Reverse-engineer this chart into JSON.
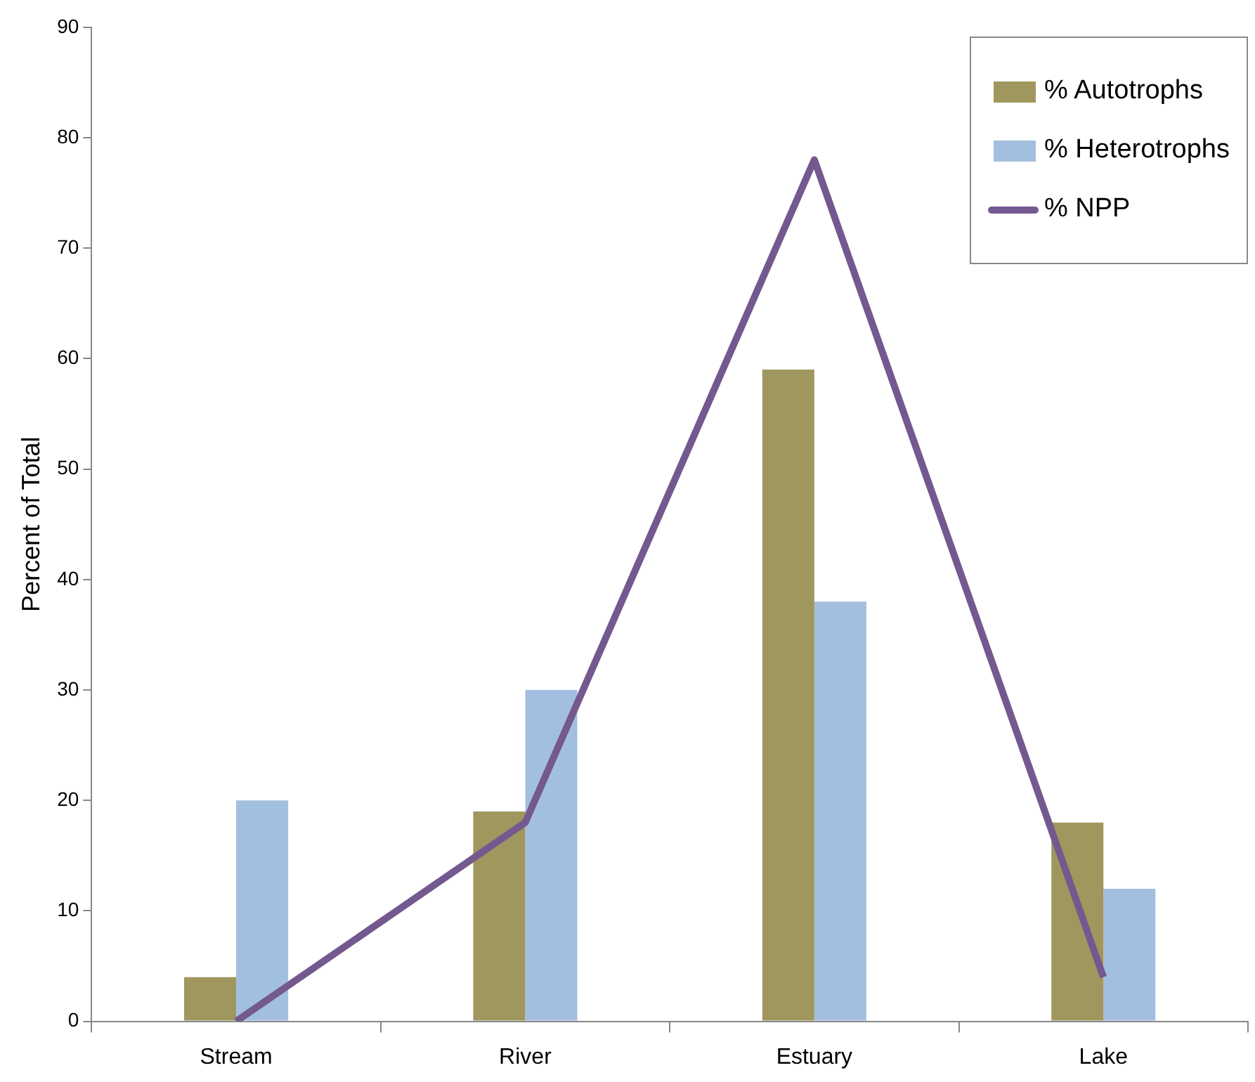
{
  "chart_data": {
    "type": "bar",
    "ylabel": "Percent of Total",
    "categories": [
      "Stream",
      "River",
      "Estuary",
      "Lake"
    ],
    "series": [
      {
        "name": "% Autotrophs",
        "color": "#a0975e",
        "values": [
          4,
          19,
          59,
          18
        ]
      },
      {
        "name": "% Heterotrophs",
        "color": "#a3bfe0",
        "values": [
          20,
          30,
          38,
          12
        ]
      },
      {
        "name": "% NPP",
        "type": "line",
        "color": "#73598f",
        "values": [
          0,
          18,
          78,
          4
        ]
      }
    ],
    "ylim": [
      0,
      90
    ],
    "yticks": [
      0,
      10,
      20,
      30,
      40,
      50,
      60,
      70,
      80,
      90
    ],
    "grid": false,
    "legend": "top right"
  }
}
